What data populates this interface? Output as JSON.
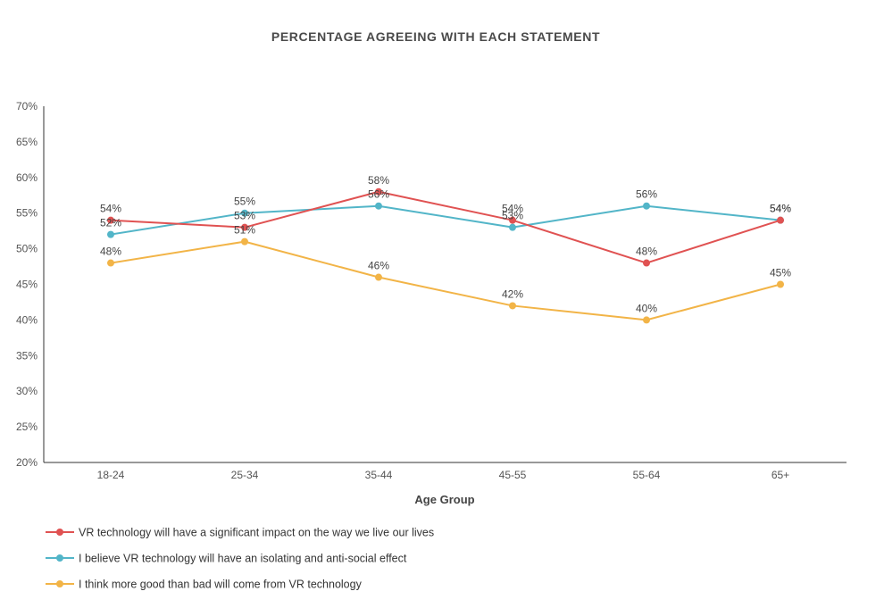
{
  "chart_data": {
    "type": "line",
    "title": "PERCENTAGE AGREEING WITH EACH STATEMENT",
    "xlabel": "Age Group",
    "ylabel": "",
    "categories": [
      "18-24",
      "25-34",
      "35-44",
      "45-55",
      "55-64",
      "65+"
    ],
    "ylim": [
      20,
      70
    ],
    "yticks": [
      "70%",
      "65%",
      "60%",
      "55%",
      "50%",
      "45%",
      "40%",
      "35%",
      "30%",
      "25%",
      "20%"
    ],
    "grid": false,
    "legend_position": "bottom-left",
    "series": [
      {
        "name": "VR technology will have a significant impact on the way we live our lives",
        "color": "#e05252",
        "values": [
          54,
          53,
          58,
          54,
          48,
          54
        ],
        "labels": [
          "54%",
          "53%",
          "58%",
          "54%",
          "48%",
          "54%"
        ]
      },
      {
        "name": "I believe VR technology will have an isolating and anti-social effect",
        "color": "#52b5c8",
        "values": [
          52,
          55,
          56,
          53,
          56,
          54
        ],
        "labels": [
          "52%",
          "55%",
          "56%",
          "53%",
          "56%",
          "54%"
        ]
      },
      {
        "name": "I think more good than bad will come from VR technology",
        "color": "#f2b447",
        "values": [
          48,
          51,
          46,
          42,
          40,
          45
        ],
        "labels": [
          "48%",
          "51%",
          "46%",
          "42%",
          "40%",
          "45%"
        ]
      }
    ]
  }
}
